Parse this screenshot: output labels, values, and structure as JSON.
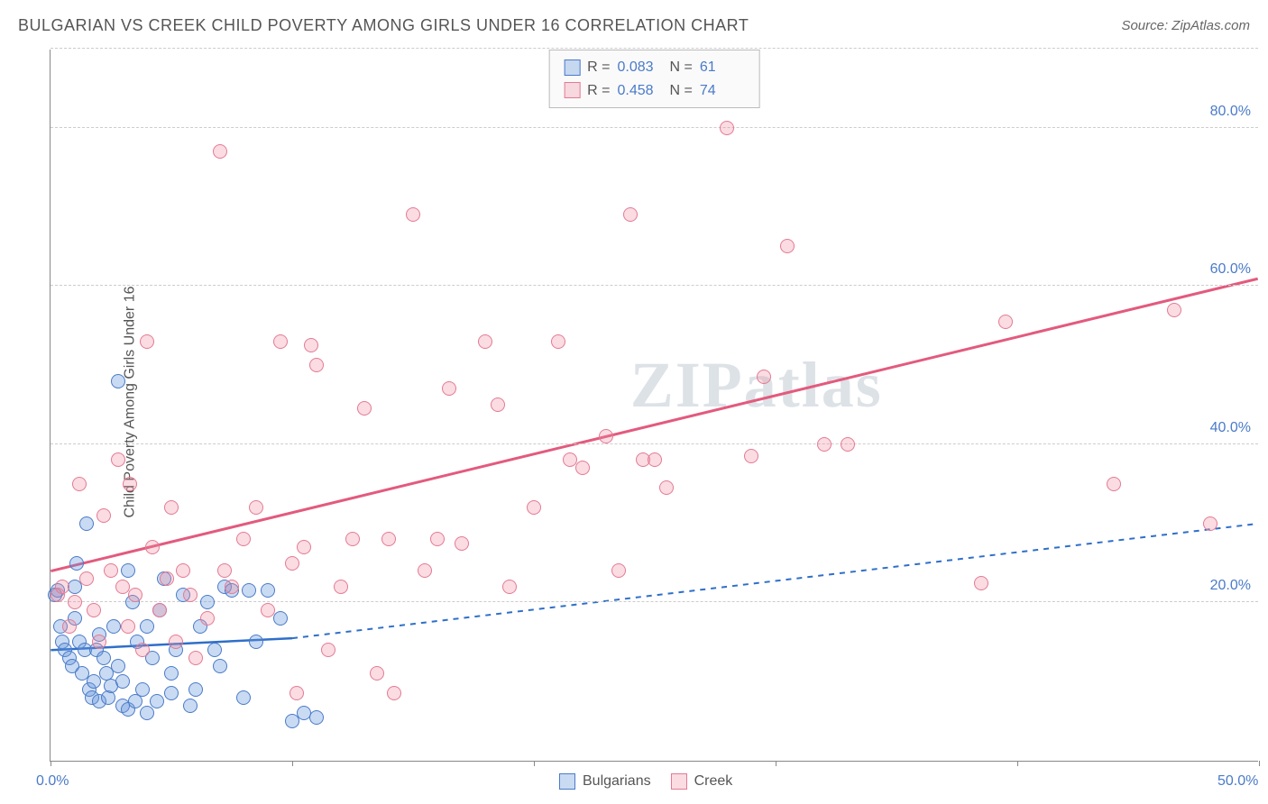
{
  "title": "BULGARIAN VS CREEK CHILD POVERTY AMONG GIRLS UNDER 16 CORRELATION CHART",
  "source": "Source: ZipAtlas.com",
  "ylabel": "Child Poverty Among Girls Under 16",
  "watermark": "ZIPatlas",
  "chart": {
    "type": "scatter",
    "xlim": [
      0,
      50
    ],
    "ylim": [
      0,
      90
    ],
    "x_ticks": [
      0,
      10,
      20,
      30,
      40,
      50
    ],
    "x_tick_labels": [
      "0.0%",
      "",
      "",
      "",
      "",
      "50.0%"
    ],
    "y_gridlines": [
      20,
      40,
      60,
      80,
      90
    ],
    "y_tick_labels": [
      "20.0%",
      "40.0%",
      "60.0%",
      "80.0%",
      ""
    ],
    "background_color": "#ffffff",
    "grid_color": "#cccccc",
    "axis_color": "#888888",
    "tick_label_color": "#4a7bc8",
    "marker_radius": 8,
    "series": [
      {
        "name": "Bulgarians",
        "color_fill": "rgba(100,150,220,0.35)",
        "color_stroke": "#4a7bc8",
        "r": "0.083",
        "n": "61",
        "trend": {
          "x1": 0,
          "y1": 14,
          "x2_solid": 10,
          "y2_solid": 15.5,
          "x2_dash": 50,
          "y2_dash": 30,
          "stroke": "#2f6fc9",
          "width": 2.5,
          "dash": "6,6"
        },
        "points": [
          [
            0.2,
            21
          ],
          [
            0.3,
            21.5
          ],
          [
            0.4,
            17
          ],
          [
            0.5,
            15
          ],
          [
            0.6,
            14
          ],
          [
            0.8,
            13
          ],
          [
            0.9,
            12
          ],
          [
            1.0,
            18
          ],
          [
            1.0,
            22
          ],
          [
            1.1,
            25
          ],
          [
            1.2,
            15
          ],
          [
            1.3,
            11
          ],
          [
            1.4,
            14
          ],
          [
            1.5,
            30
          ],
          [
            1.6,
            9
          ],
          [
            1.7,
            8
          ],
          [
            1.8,
            10
          ],
          [
            1.9,
            14
          ],
          [
            2.0,
            16
          ],
          [
            2.0,
            7.5
          ],
          [
            2.2,
            13
          ],
          [
            2.3,
            11
          ],
          [
            2.4,
            8
          ],
          [
            2.5,
            9.5
          ],
          [
            2.6,
            17
          ],
          [
            2.8,
            48
          ],
          [
            2.8,
            12
          ],
          [
            3.0,
            10
          ],
          [
            3.0,
            7
          ],
          [
            3.2,
            24
          ],
          [
            3.2,
            6.5
          ],
          [
            3.4,
            20
          ],
          [
            3.5,
            7.5
          ],
          [
            3.6,
            15
          ],
          [
            3.8,
            9
          ],
          [
            4.0,
            17
          ],
          [
            4.0,
            6
          ],
          [
            4.2,
            13
          ],
          [
            4.4,
            7.5
          ],
          [
            4.5,
            19
          ],
          [
            4.7,
            23
          ],
          [
            5.0,
            11
          ],
          [
            5.0,
            8.5
          ],
          [
            5.2,
            14
          ],
          [
            5.5,
            21
          ],
          [
            5.8,
            7
          ],
          [
            6.0,
            9
          ],
          [
            6.2,
            17
          ],
          [
            6.5,
            20
          ],
          [
            6.8,
            14
          ],
          [
            7.0,
            12
          ],
          [
            7.2,
            22
          ],
          [
            7.5,
            21.5
          ],
          [
            8.0,
            8
          ],
          [
            8.2,
            21.5
          ],
          [
            8.5,
            15
          ],
          [
            9.0,
            21.5
          ],
          [
            9.5,
            18
          ],
          [
            10.0,
            5
          ],
          [
            10.5,
            6
          ],
          [
            11.0,
            5.5
          ]
        ]
      },
      {
        "name": "Creek",
        "color_fill": "rgba(240,140,160,0.3)",
        "color_stroke": "#e47a94",
        "r": "0.458",
        "n": "74",
        "trend": {
          "x1": 0,
          "y1": 24,
          "x2_solid": 50,
          "y2_solid": 61,
          "stroke": "#e35a7d",
          "width": 3
        },
        "points": [
          [
            0.3,
            21
          ],
          [
            0.5,
            22
          ],
          [
            0.8,
            17
          ],
          [
            1.0,
            20
          ],
          [
            1.2,
            35
          ],
          [
            1.5,
            23
          ],
          [
            1.8,
            19
          ],
          [
            2.0,
            15
          ],
          [
            2.2,
            31
          ],
          [
            2.5,
            24
          ],
          [
            2.8,
            38
          ],
          [
            3.0,
            22
          ],
          [
            3.2,
            17
          ],
          [
            3.3,
            35
          ],
          [
            3.5,
            21
          ],
          [
            3.8,
            14
          ],
          [
            4.0,
            53
          ],
          [
            4.2,
            27
          ],
          [
            4.5,
            19
          ],
          [
            4.8,
            23
          ],
          [
            5.0,
            32
          ],
          [
            5.2,
            15
          ],
          [
            5.5,
            24
          ],
          [
            5.8,
            21
          ],
          [
            6.0,
            13
          ],
          [
            6.5,
            18
          ],
          [
            7.0,
            77
          ],
          [
            7.2,
            24
          ],
          [
            7.5,
            22
          ],
          [
            8.0,
            28
          ],
          [
            8.5,
            32
          ],
          [
            9.0,
            19
          ],
          [
            9.5,
            53
          ],
          [
            10.0,
            25
          ],
          [
            10.2,
            8.5
          ],
          [
            10.5,
            27
          ],
          [
            10.8,
            52.5
          ],
          [
            11.0,
            50
          ],
          [
            11.5,
            14
          ],
          [
            12.0,
            22
          ],
          [
            12.5,
            28
          ],
          [
            13.0,
            44.5
          ],
          [
            13.5,
            11
          ],
          [
            14.0,
            28
          ],
          [
            14.2,
            8.5
          ],
          [
            15.0,
            69
          ],
          [
            15.5,
            24
          ],
          [
            16.0,
            28
          ],
          [
            16.5,
            47
          ],
          [
            17.0,
            27.5
          ],
          [
            18.0,
            53
          ],
          [
            18.5,
            45
          ],
          [
            19.0,
            22
          ],
          [
            20.0,
            32
          ],
          [
            21.0,
            53
          ],
          [
            21.5,
            38
          ],
          [
            22.0,
            37
          ],
          [
            23.0,
            41
          ],
          [
            23.5,
            24
          ],
          [
            24.0,
            69
          ],
          [
            24.5,
            38
          ],
          [
            25.0,
            38
          ],
          [
            25.5,
            34.5
          ],
          [
            28.0,
            80
          ],
          [
            29.0,
            38.5
          ],
          [
            29.5,
            48.5
          ],
          [
            30.5,
            65
          ],
          [
            32.0,
            40
          ],
          [
            33.0,
            40
          ],
          [
            38.5,
            22.5
          ],
          [
            39.5,
            55.5
          ],
          [
            44.0,
            35
          ],
          [
            46.5,
            57
          ],
          [
            48.0,
            30
          ]
        ]
      }
    ]
  },
  "bottom_legend": [
    {
      "swatch": "blue",
      "label": "Bulgarians"
    },
    {
      "swatch": "pink",
      "label": "Creek"
    }
  ]
}
